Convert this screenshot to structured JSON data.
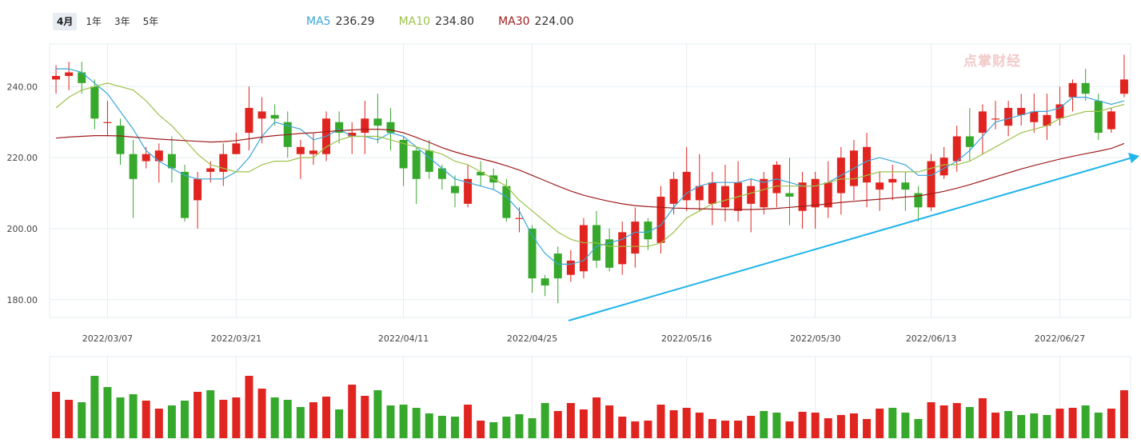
{
  "tabs": [
    {
      "label": "4月",
      "active": true
    },
    {
      "label": "1年",
      "active": false
    },
    {
      "label": "3年",
      "active": false
    },
    {
      "label": "5年",
      "active": false
    }
  ],
  "legend": [
    {
      "name": "MA5",
      "value": "236.29",
      "color": "#3aa6d6"
    },
    {
      "name": "MA10",
      "value": "234.80",
      "color": "#9cc24b"
    },
    {
      "name": "MA30",
      "value": "224.00",
      "color": "#9e1d1d"
    }
  ],
  "watermark": "点掌财经",
  "colors": {
    "up": "#e0241f",
    "down": "#36a82c",
    "grid": "#e6ecf2",
    "trend": "#1fb4ea"
  },
  "chart_data": {
    "type": "candlestick",
    "ylim": [
      175,
      252
    ],
    "y_ticks": [
      "240.00",
      "220.00",
      "200.00",
      "180.00"
    ],
    "y_tick_values": [
      240,
      220,
      200,
      180
    ],
    "x_tick_labels": [
      {
        "label": "2022/03/07",
        "index": 4
      },
      {
        "label": "2022/03/21",
        "index": 14
      },
      {
        "label": "2022/04/11",
        "index": 27
      },
      {
        "label": "2022/04/25",
        "index": 37
      },
      {
        "label": "2022/05/16",
        "index": 49
      },
      {
        "label": "2022/05/30",
        "index": 59
      },
      {
        "label": "2022/06/13",
        "index": 68
      },
      {
        "label": "2022/06/27",
        "index": 78
      }
    ],
    "candles": [
      [
        242,
        243,
        238,
        246
      ],
      [
        243,
        244,
        239,
        247
      ],
      [
        244,
        241,
        238,
        247
      ],
      [
        240,
        231,
        228,
        242
      ],
      [
        230,
        230,
        226,
        236
      ],
      [
        229,
        221,
        218,
        231
      ],
      [
        221,
        214,
        203,
        225
      ],
      [
        219,
        221,
        217,
        223
      ],
      [
        219,
        222,
        213,
        224
      ],
      [
        221,
        217,
        213,
        226
      ],
      [
        216,
        203,
        202,
        218
      ],
      [
        208,
        214,
        200,
        216
      ],
      [
        216,
        217,
        213,
        219
      ],
      [
        216,
        221,
        212,
        224
      ],
      [
        221,
        224,
        221,
        227
      ],
      [
        227,
        234,
        222,
        240
      ],
      [
        231,
        233,
        224,
        237
      ],
      [
        232,
        231,
        229,
        235
      ],
      [
        230,
        223,
        220,
        233
      ],
      [
        221,
        223,
        214,
        225
      ],
      [
        221,
        222,
        218,
        227
      ],
      [
        221,
        231,
        219,
        233
      ],
      [
        230,
        227,
        224,
        233
      ],
      [
        226,
        227,
        221,
        230
      ],
      [
        227,
        231,
        221,
        236
      ],
      [
        231,
        229,
        224,
        238
      ],
      [
        230,
        227,
        222,
        234
      ],
      [
        225,
        217,
        212,
        226
      ],
      [
        222,
        214,
        207,
        223
      ],
      [
        222,
        216,
        214,
        225
      ],
      [
        217,
        214,
        211,
        218
      ],
      [
        212,
        210,
        206,
        215
      ],
      [
        207,
        214,
        206,
        218
      ],
      [
        216,
        215,
        212,
        219
      ],
      [
        215,
        213,
        211,
        217
      ],
      [
        212,
        203,
        202,
        214
      ],
      [
        203,
        203,
        199,
        206
      ],
      [
        200,
        186,
        182,
        201
      ],
      [
        186,
        184,
        181,
        187
      ],
      [
        193,
        186,
        179,
        195
      ],
      [
        187,
        191,
        185,
        194
      ],
      [
        188,
        201,
        186,
        203
      ],
      [
        201,
        191,
        189,
        205
      ],
      [
        197,
        189,
        188,
        200
      ],
      [
        190,
        199,
        187,
        202
      ],
      [
        193,
        202,
        189,
        206
      ],
      [
        202,
        197,
        194,
        203
      ],
      [
        196,
        209,
        193,
        212
      ],
      [
        207,
        214,
        204,
        216
      ],
      [
        208,
        216,
        205,
        223
      ],
      [
        208,
        212,
        205,
        221
      ],
      [
        207,
        213,
        201,
        216
      ],
      [
        206,
        212,
        202,
        218
      ],
      [
        205,
        213,
        202,
        219
      ],
      [
        207,
        212,
        199,
        214
      ],
      [
        206,
        214,
        204,
        216
      ],
      [
        210,
        218,
        206,
        219
      ],
      [
        210,
        209,
        201,
        220
      ],
      [
        205,
        213,
        200,
        216
      ],
      [
        206,
        214,
        200,
        216
      ],
      [
        206,
        213,
        203,
        219
      ],
      [
        210,
        220,
        204,
        223
      ],
      [
        212,
        222,
        208,
        225
      ],
      [
        213,
        223,
        206,
        227
      ],
      [
        211,
        213,
        205,
        216
      ],
      [
        213,
        214,
        208,
        218
      ],
      [
        213,
        211,
        205,
        216
      ],
      [
        210,
        206,
        202,
        212
      ],
      [
        206,
        219,
        205,
        221
      ],
      [
        215,
        220,
        214,
        223
      ],
      [
        219,
        226,
        216,
        229
      ],
      [
        226,
        223,
        219,
        234
      ],
      [
        227,
        233,
        221,
        235
      ],
      [
        231,
        231,
        228,
        236
      ],
      [
        229,
        234,
        226,
        236
      ],
      [
        232,
        234,
        229,
        238
      ],
      [
        230,
        233,
        227,
        238
      ],
      [
        229,
        232,
        225,
        238
      ],
      [
        231,
        235,
        229,
        240
      ],
      [
        237,
        241,
        233,
        242
      ],
      [
        241,
        238,
        236,
        245
      ],
      [
        236,
        227,
        225,
        238
      ],
      [
        228,
        233,
        227,
        234
      ],
      [
        238,
        242,
        237,
        249
      ]
    ],
    "ma_series": [
      {
        "name": "MA5",
        "color": "#3aa6d6",
        "values": [
          245,
          245,
          244,
          241,
          238,
          233,
          228,
          222,
          219,
          217,
          215,
          214,
          214,
          214,
          216,
          220,
          226,
          230,
          229,
          228,
          225,
          226,
          228,
          226,
          226,
          225,
          227,
          226,
          223,
          220,
          217,
          214,
          213,
          212,
          211,
          209,
          205,
          198,
          193,
          190,
          190,
          191,
          195,
          196,
          197,
          199,
          199,
          201,
          206,
          210,
          212,
          213,
          213,
          213,
          214,
          213,
          214,
          213,
          212,
          212,
          213,
          215,
          217,
          219,
          220,
          219,
          218,
          215,
          215,
          217,
          219,
          222,
          226,
          230,
          231,
          232,
          233,
          233,
          234,
          237,
          237,
          236,
          235,
          236
        ]
      },
      {
        "name": "MA10",
        "color": "#9cc24b",
        "values": [
          234,
          237,
          239,
          240,
          241,
          240,
          239,
          236,
          232,
          229,
          225,
          221,
          218,
          217,
          216,
          216,
          218,
          219,
          219,
          220,
          220,
          223,
          225,
          226,
          226,
          226,
          225,
          224,
          223,
          222,
          221,
          219,
          218,
          216,
          214,
          212,
          208,
          205,
          202,
          199,
          197,
          196,
          196,
          195,
          195,
          195,
          195,
          196,
          199,
          203,
          205,
          207,
          208,
          209,
          210,
          211,
          212,
          212,
          212,
          212,
          213,
          214,
          214,
          215,
          216,
          216,
          216,
          216,
          217,
          218,
          218,
          219,
          221,
          223,
          225,
          227,
          228,
          229,
          231,
          232,
          233,
          233,
          234,
          235
        ]
      },
      {
        "name": "MA30",
        "color": "#9e1d1d",
        "values": [
          225.5,
          225.8,
          226,
          226.2,
          226.2,
          226.1,
          225.8,
          225.5,
          225.2,
          225,
          224.8,
          224.6,
          224.4,
          224.5,
          224.8,
          225.3,
          225.8,
          226.2,
          226.5,
          226.8,
          227,
          227.3,
          227.6,
          227.8,
          228,
          228,
          227.8,
          227,
          225.7,
          224.3,
          222.8,
          221.6,
          220.6,
          219.7,
          218.8,
          217.7,
          216.5,
          215,
          213.5,
          212,
          210.6,
          209.4,
          208.5,
          207.7,
          207,
          206.5,
          206.2,
          206,
          205.8,
          205.7,
          205.6,
          205.5,
          205.4,
          205.4,
          205.4,
          205.5,
          205.7,
          206,
          206.3,
          206.6,
          207,
          207.4,
          207.7,
          208,
          208.3,
          208.6,
          208.9,
          209.2,
          209.8,
          210.5,
          211.4,
          212.4,
          213.5,
          214.6,
          215.7,
          216.8,
          217.8,
          218.7,
          219.6,
          220.4,
          221.1,
          221.8,
          222.6,
          224
        ]
      }
    ],
    "volume": [
      [
        58,
        "up"
      ],
      [
        48,
        "up"
      ],
      [
        45,
        "down"
      ],
      [
        78,
        "down"
      ],
      [
        64,
        "down"
      ],
      [
        51,
        "down"
      ],
      [
        55,
        "down"
      ],
      [
        47,
        "up"
      ],
      [
        37,
        "up"
      ],
      [
        41,
        "down"
      ],
      [
        47,
        "down"
      ],
      [
        58,
        "up"
      ],
      [
        60,
        "down"
      ],
      [
        48,
        "up"
      ],
      [
        51,
        "up"
      ],
      [
        78,
        "up"
      ],
      [
        62,
        "up"
      ],
      [
        51,
        "down"
      ],
      [
        48,
        "down"
      ],
      [
        39,
        "down"
      ],
      [
        45,
        "up"
      ],
      [
        52,
        "up"
      ],
      [
        36,
        "down"
      ],
      [
        67,
        "up"
      ],
      [
        53,
        "up"
      ],
      [
        60,
        "down"
      ],
      [
        41,
        "down"
      ],
      [
        42,
        "down"
      ],
      [
        38,
        "down"
      ],
      [
        31,
        "down"
      ],
      [
        28,
        "down"
      ],
      [
        27,
        "down"
      ],
      [
        42,
        "up"
      ],
      [
        22,
        "up"
      ],
      [
        20,
        "down"
      ],
      [
        27,
        "down"
      ],
      [
        30,
        "down"
      ],
      [
        25,
        "down"
      ],
      [
        44,
        "down"
      ],
      [
        34,
        "up"
      ],
      [
        44,
        "up"
      ],
      [
        36,
        "up"
      ],
      [
        51,
        "up"
      ],
      [
        41,
        "up"
      ],
      [
        27,
        "up"
      ],
      [
        21,
        "up"
      ],
      [
        22,
        "up"
      ],
      [
        42,
        "up"
      ],
      [
        35,
        "up"
      ],
      [
        38,
        "up"
      ],
      [
        32,
        "up"
      ],
      [
        24,
        "up"
      ],
      [
        22,
        "up"
      ],
      [
        22,
        "up"
      ],
      [
        28,
        "up"
      ],
      [
        34,
        "down"
      ],
      [
        32,
        "down"
      ],
      [
        21,
        "up"
      ],
      [
        33,
        "up"
      ],
      [
        32,
        "up"
      ],
      [
        25,
        "up"
      ],
      [
        29,
        "up"
      ],
      [
        31,
        "up"
      ],
      [
        24,
        "up"
      ],
      [
        37,
        "up"
      ],
      [
        38,
        "down"
      ],
      [
        32,
        "down"
      ],
      [
        24,
        "down"
      ],
      [
        45,
        "up"
      ],
      [
        41,
        "up"
      ],
      [
        44,
        "up"
      ],
      [
        39,
        "down"
      ],
      [
        50,
        "up"
      ],
      [
        32,
        "up"
      ],
      [
        34,
        "down"
      ],
      [
        29,
        "down"
      ],
      [
        31,
        "down"
      ],
      [
        29,
        "down"
      ],
      [
        37,
        "up"
      ],
      [
        38,
        "up"
      ],
      [
        41,
        "down"
      ],
      [
        32,
        "down"
      ],
      [
        37,
        "up"
      ],
      [
        60,
        "up"
      ]
    ]
  }
}
